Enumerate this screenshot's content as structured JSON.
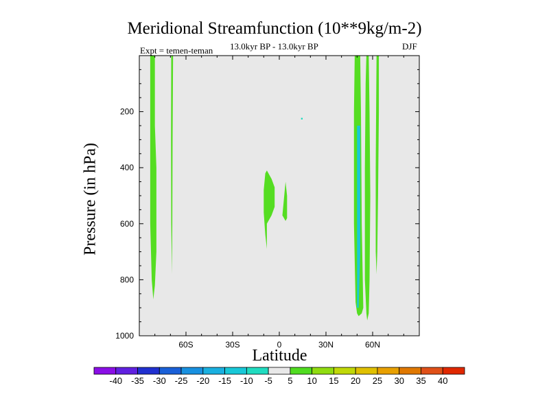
{
  "chart_data": {
    "type": "contour",
    "title": "Meridional Streamfunction (10**9kg/m-2)",
    "subtitle": "13.0kyr BP - 13.0kyr BP",
    "experiment": "Expt = temen-teman",
    "season": "DJF",
    "xlabel": "Latitude",
    "ylabel": "Pressure (in hPa)",
    "xlim": [
      -90,
      90
    ],
    "ylim": [
      1000,
      0
    ],
    "x_ticks": [
      {
        "value": -60,
        "label": "60S"
      },
      {
        "value": -30,
        "label": "30S"
      },
      {
        "value": 0,
        "label": "0"
      },
      {
        "value": 30,
        "label": "30N"
      },
      {
        "value": 60,
        "label": "60N"
      }
    ],
    "y_ticks": [
      200,
      400,
      600,
      800,
      1000
    ],
    "colorbar": {
      "levels": [
        "-40",
        "-35",
        "-30",
        "-25",
        "-20",
        "-15",
        "-10",
        "-5",
        "5",
        "10",
        "15",
        "20",
        "25",
        "30",
        "35",
        "40"
      ],
      "colors": [
        "#8a0ee6",
        "#6020e0",
        "#2030d0",
        "#1a60d8",
        "#1890e0",
        "#1ab0e0",
        "#18c8d8",
        "#20dcc0",
        "#e8e8e8",
        "#50dc20",
        "#90dc10",
        "#c0d808",
        "#e0c000",
        "#e8a000",
        "#e07800",
        "#e05018",
        "#e02800"
      ]
    },
    "background_color": "#e8e8e8",
    "regions": [
      {
        "name": "sh-high-lat-positive",
        "level": "5",
        "color": "#55dd22",
        "outline": [
          [
            -83,
            0
          ],
          [
            -80,
            0
          ],
          [
            -80,
            250
          ],
          [
            -79,
            400
          ],
          [
            -79,
            700
          ],
          [
            -80,
            820
          ],
          [
            -81,
            870
          ],
          [
            -82,
            800
          ],
          [
            -83,
            600
          ],
          [
            -83,
            250
          ]
        ]
      },
      {
        "name": "sh-narrow-positive",
        "level": "5",
        "color": "#55dd22",
        "outline": [
          [
            -69.5,
            0
          ],
          [
            -68.3,
            0
          ],
          [
            -68.6,
            300
          ],
          [
            -68.8,
            600
          ],
          [
            -69,
            780
          ],
          [
            -69.5,
            600
          ],
          [
            -69.6,
            300
          ]
        ]
      },
      {
        "name": "tropical-positive-west",
        "level": "5",
        "color": "#55dd22",
        "outline": [
          [
            -8,
            410
          ],
          [
            -5,
            440
          ],
          [
            -3,
            470
          ],
          [
            -3,
            540
          ],
          [
            -5,
            570
          ],
          [
            -8,
            600
          ],
          [
            -8,
            650
          ],
          [
            -8,
            690
          ],
          [
            -9,
            640
          ],
          [
            -10,
            560
          ],
          [
            -10,
            480
          ],
          [
            -9,
            420
          ]
        ]
      },
      {
        "name": "tropical-positive-east",
        "level": "5",
        "color": "#55dd22",
        "outline": [
          [
            4,
            450
          ],
          [
            5,
            500
          ],
          [
            5,
            580
          ],
          [
            4,
            590
          ],
          [
            2,
            570
          ],
          [
            3,
            510
          ]
        ]
      },
      {
        "name": "nh-midlat-positive",
        "level": "5",
        "color": "#55dd22",
        "outline": [
          [
            48.5,
            0
          ],
          [
            52,
            0
          ],
          [
            52.5,
            200
          ],
          [
            53,
            600
          ],
          [
            54,
            900
          ],
          [
            53,
            920
          ],
          [
            51,
            930
          ],
          [
            50,
            920
          ],
          [
            49,
            880
          ],
          [
            48,
            600
          ],
          [
            48,
            200
          ]
        ]
      },
      {
        "name": "nh-midlat-core",
        "level": "-10",
        "color": "#18c8d8",
        "outline": [
          [
            50,
            250
          ],
          [
            52,
            250
          ],
          [
            52,
            700
          ],
          [
            51,
            900
          ],
          [
            50,
            900
          ],
          [
            50,
            700
          ]
        ]
      },
      {
        "name": "nh-highlat-positive",
        "level": "5",
        "color": "#55dd22",
        "outline": [
          [
            56,
            0
          ],
          [
            57.5,
            0
          ],
          [
            58,
            200
          ],
          [
            58.5,
            500
          ],
          [
            58,
            800
          ],
          [
            57.5,
            920
          ],
          [
            56.5,
            945
          ],
          [
            56,
            920
          ],
          [
            55,
            800
          ],
          [
            55,
            400
          ],
          [
            55.5,
            100
          ]
        ]
      },
      {
        "name": "nh-polar-positive",
        "level": "5",
        "color": "#55dd22",
        "outline": [
          [
            62.5,
            0
          ],
          [
            64,
            0
          ],
          [
            64,
            200
          ],
          [
            63.5,
            500
          ],
          [
            63,
            700
          ],
          [
            62.5,
            780
          ],
          [
            62,
            700
          ],
          [
            62,
            400
          ],
          [
            62.3,
            150
          ]
        ]
      },
      {
        "name": "isolated-point",
        "level": "5",
        "color": "#20dcc0",
        "outline": [
          [
            14,
            222
          ],
          [
            15,
            222
          ],
          [
            15,
            228
          ],
          [
            14,
            228
          ]
        ]
      }
    ]
  }
}
